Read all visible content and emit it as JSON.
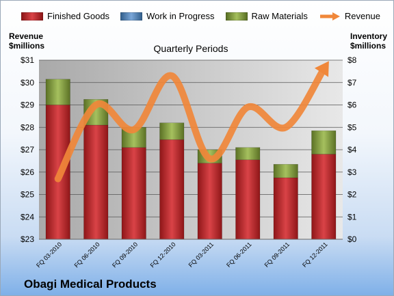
{
  "company": "Obagi Medical Products",
  "chart_data": {
    "type": "bar",
    "stacked": true,
    "title": "Quarterly Periods",
    "categories": [
      "FQ 03-2010",
      "FQ 06-2010",
      "FQ 09-2010",
      "FQ 12-2010",
      "FQ 03-2011",
      "FQ 06-2011",
      "FQ 09-2011",
      "FQ 12-2011"
    ],
    "y_left": {
      "label_lines": [
        "Revenue",
        "$millions"
      ],
      "ylim": [
        23,
        31
      ],
      "ticks": [
        "$23",
        "$24",
        "$25",
        "$26",
        "$27",
        "$28",
        "$29",
        "$30",
        "$31"
      ]
    },
    "y_right": {
      "label_lines": [
        "Inventory",
        "$millions"
      ],
      "ylim": [
        0,
        8
      ],
      "ticks": [
        "$0",
        "$1",
        "$2",
        "$3",
        "$4",
        "$5",
        "$6",
        "$7",
        "$8"
      ]
    },
    "grid": true,
    "legend_position": "top",
    "series": [
      {
        "name": "Finished Goods",
        "type": "bar",
        "axis": "right",
        "color": "#c0282c",
        "values": [
          6.0,
          5.1,
          4.1,
          4.45,
          3.4,
          3.55,
          2.75,
          3.8
        ]
      },
      {
        "name": "Work in Progress",
        "type": "bar",
        "axis": "right",
        "color": "#4f81bd",
        "values": [
          0,
          0,
          0,
          0,
          0,
          0,
          0,
          0
        ]
      },
      {
        "name": "Raw Materials",
        "type": "bar",
        "axis": "right",
        "color": "#7f9a3a",
        "values": [
          1.15,
          1.15,
          0.9,
          0.75,
          0.6,
          0.55,
          0.6,
          1.05
        ]
      },
      {
        "name": "Revenue",
        "type": "line",
        "axis": "left",
        "color": "#f0873a",
        "values": [
          25.7,
          29.0,
          27.9,
          30.3,
          26.6,
          28.9,
          28.0,
          30.6
        ]
      }
    ]
  }
}
